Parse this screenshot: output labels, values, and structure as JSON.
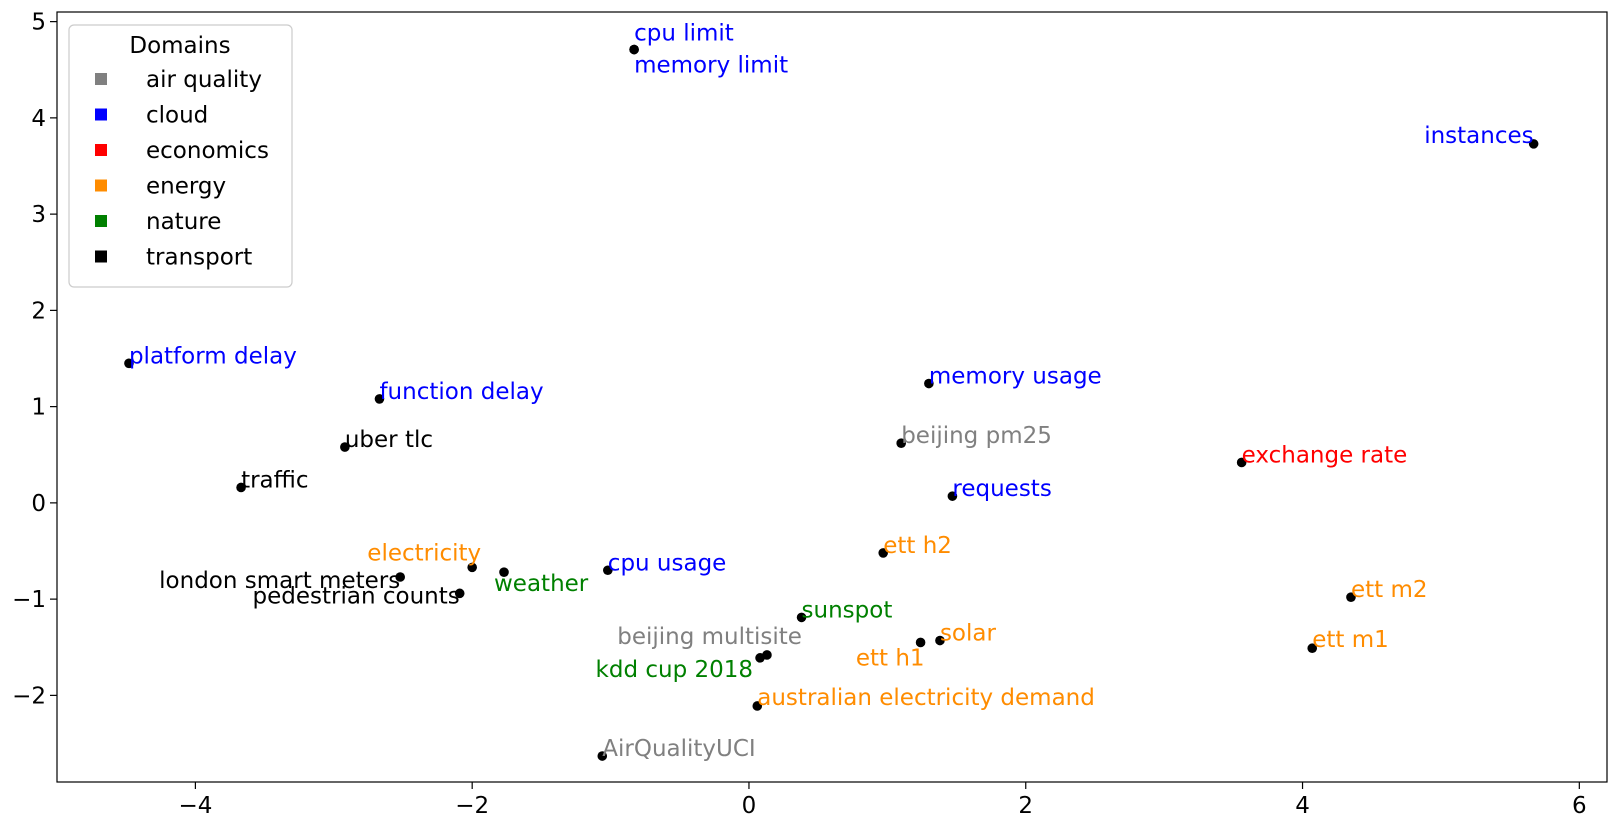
{
  "chart_data": {
    "type": "scatter",
    "title": "",
    "xlabel": "",
    "ylabel": "",
    "xlim": [
      -5.0,
      6.2
    ],
    "ylim": [
      -2.9,
      5.1
    ],
    "grid": false,
    "legend_placement": "top-left",
    "x_ticks": [
      {
        "value": -4,
        "label": "−4"
      },
      {
        "value": -2,
        "label": "−2"
      },
      {
        "value": 0,
        "label": "0"
      },
      {
        "value": 2,
        "label": "2"
      },
      {
        "value": 4,
        "label": "4"
      },
      {
        "value": 6,
        "label": "6"
      }
    ],
    "y_ticks": [
      {
        "value": -2,
        "label": "−2"
      },
      {
        "value": -1,
        "label": "−1"
      },
      {
        "value": 0,
        "label": "0"
      },
      {
        "value": 1,
        "label": "1"
      },
      {
        "value": 2,
        "label": "2"
      },
      {
        "value": 3,
        "label": "3"
      },
      {
        "value": 4,
        "label": "4"
      },
      {
        "value": 5,
        "label": "5"
      }
    ],
    "legend": {
      "title": "Domains",
      "entries": [
        {
          "name": "air quality",
          "color": "#808080"
        },
        {
          "name": "cloud",
          "color": "#0000ff"
        },
        {
          "name": "economics",
          "color": "#ff0000"
        },
        {
          "name": "energy",
          "color": "#ff8c00"
        },
        {
          "name": "nature",
          "color": "#008000"
        },
        {
          "name": "transport",
          "color": "#000000"
        }
      ]
    },
    "marker_color": "#000000",
    "points": [
      {
        "label": "cpu limit",
        "domain": "cloud",
        "x": -0.83,
        "y": 4.71
      },
      {
        "label": "memory limit",
        "domain": "cloud",
        "x": -0.83,
        "y": 4.71
      },
      {
        "label": "instances",
        "domain": "cloud",
        "x": 5.67,
        "y": 3.73
      },
      {
        "label": "platform delay",
        "domain": "cloud",
        "x": -4.48,
        "y": 1.45
      },
      {
        "label": "function delay",
        "domain": "cloud",
        "x": -2.67,
        "y": 1.08
      },
      {
        "label": "memory usage",
        "domain": "cloud",
        "x": 1.3,
        "y": 1.24
      },
      {
        "label": "beijing pm25",
        "domain": "air quality",
        "x": 1.1,
        "y": 0.62
      },
      {
        "label": "exchange rate",
        "domain": "economics",
        "x": 3.56,
        "y": 0.42
      },
      {
        "label": "uber tlc",
        "domain": "transport",
        "x": -2.92,
        "y": 0.58
      },
      {
        "label": "traffic",
        "domain": "transport",
        "x": -3.67,
        "y": 0.16
      },
      {
        "label": "requests",
        "domain": "cloud",
        "x": 1.47,
        "y": 0.07
      },
      {
        "label": "electricity",
        "domain": "energy",
        "x": -2.0,
        "y": -0.67
      },
      {
        "label": "weather",
        "domain": "nature",
        "x": -1.77,
        "y": -0.72
      },
      {
        "label": "london smart meters",
        "domain": "transport",
        "x": -2.52,
        "y": -0.77
      },
      {
        "label": "pedestrian counts",
        "domain": "transport",
        "x": -2.09,
        "y": -0.94
      },
      {
        "label": "cpu usage",
        "domain": "cloud",
        "x": -1.02,
        "y": -0.7
      },
      {
        "label": "ett h2",
        "domain": "energy",
        "x": 0.97,
        "y": -0.52
      },
      {
        "label": "ett m2",
        "domain": "energy",
        "x": 4.35,
        "y": -0.98
      },
      {
        "label": "sunspot",
        "domain": "nature",
        "x": 0.38,
        "y": -1.19
      },
      {
        "label": "solar",
        "domain": "energy",
        "x": 1.38,
        "y": -1.43
      },
      {
        "label": "ett h1",
        "domain": "energy",
        "x": 1.24,
        "y": -1.45
      },
      {
        "label": "ett m1",
        "domain": "energy",
        "x": 4.07,
        "y": -1.51
      },
      {
        "label": "beijing multisite",
        "domain": "air quality",
        "x": 0.13,
        "y": -1.58
      },
      {
        "label": "kdd cup 2018",
        "domain": "nature",
        "x": 0.08,
        "y": -1.61
      },
      {
        "label": "australian electricity demand",
        "domain": "energy",
        "x": 0.06,
        "y": -2.11
      },
      {
        "label": "AirQualityUCI",
        "domain": "air quality",
        "x": -1.06,
        "y": -2.63
      }
    ]
  }
}
